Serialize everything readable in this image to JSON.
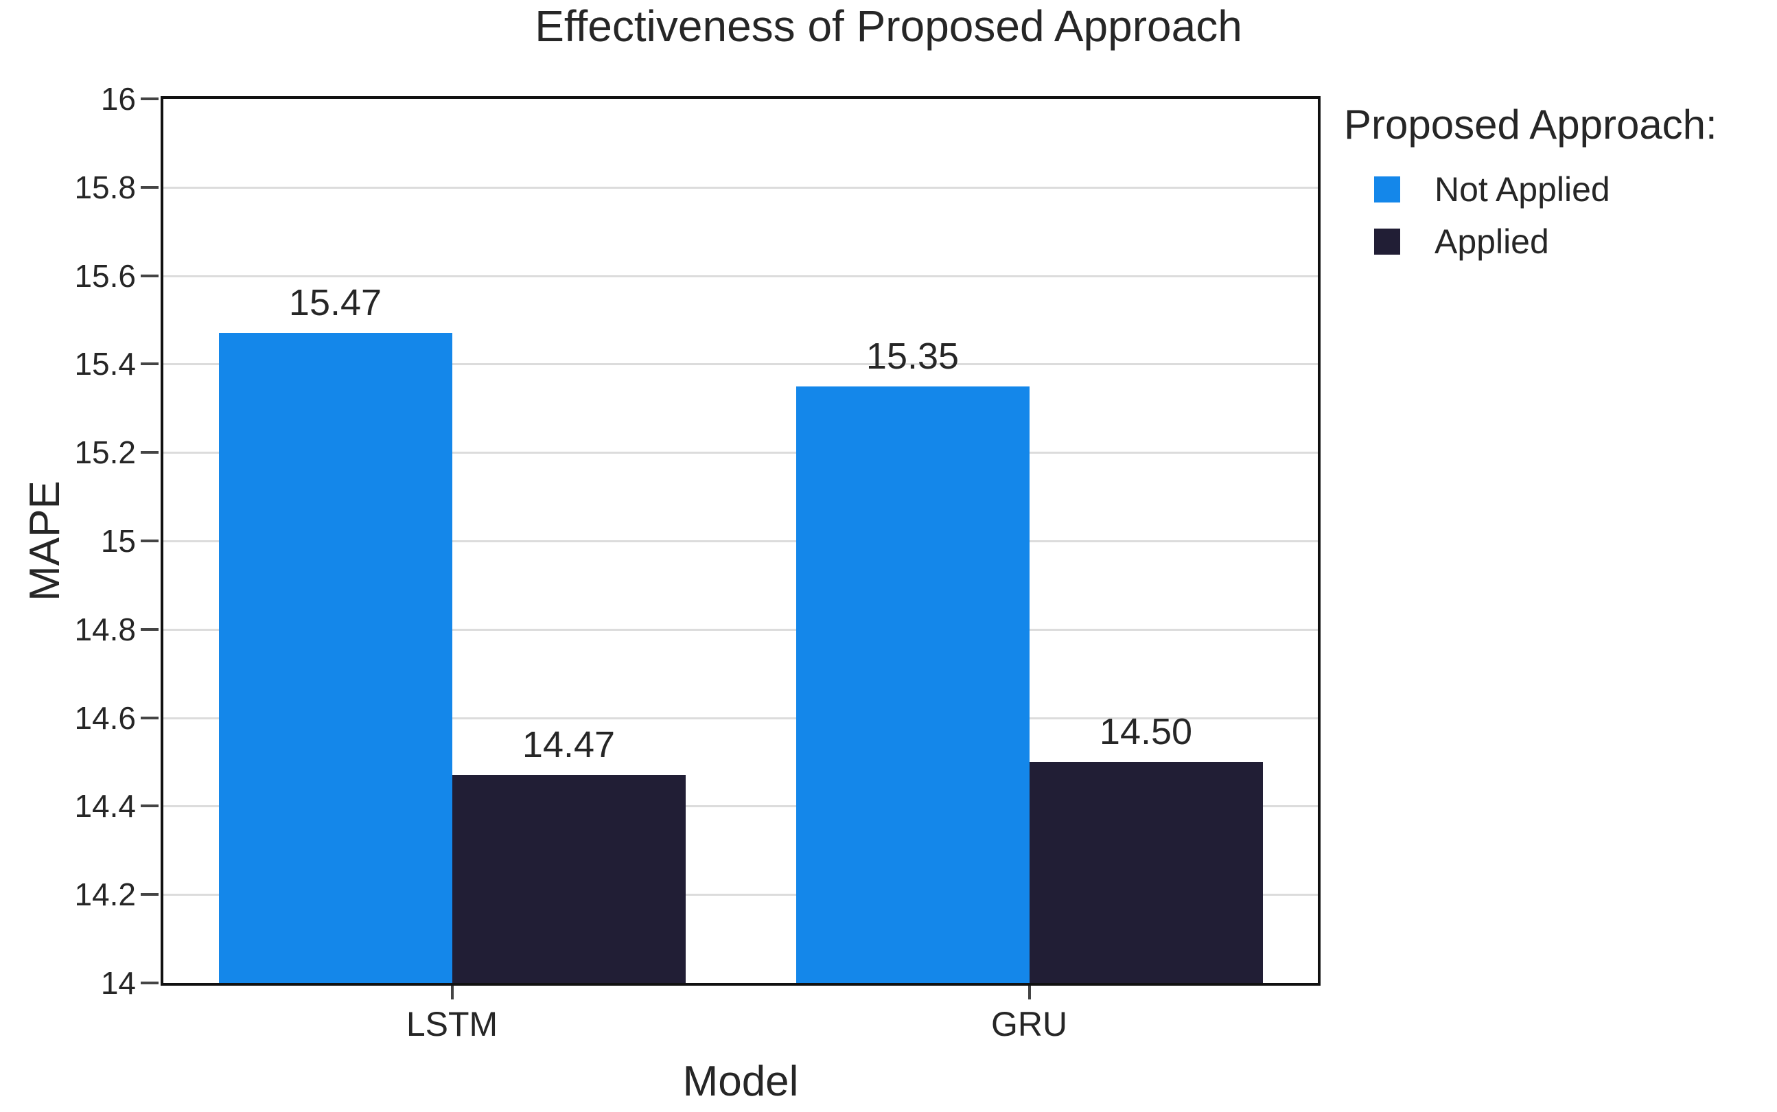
{
  "chart_data": {
    "type": "bar",
    "title": "Effectiveness of Proposed Approach",
    "xlabel": "Model",
    "ylabel": "MAPE",
    "categories": [
      "LSTM",
      "GRU"
    ],
    "series": [
      {
        "name": "Not Applied",
        "color": "#1487ea",
        "values": [
          15.47,
          15.35
        ],
        "labels": [
          "15.47",
          "15.35"
        ]
      },
      {
        "name": "Applied",
        "color": "#211e35",
        "values": [
          14.47,
          14.5
        ],
        "labels": [
          "14.47",
          "14.50"
        ]
      }
    ],
    "ylim": [
      14,
      16
    ],
    "yticks": [
      {
        "value": 14,
        "label": "14"
      },
      {
        "value": 14.2,
        "label": "14.2"
      },
      {
        "value": 14.4,
        "label": "14.4"
      },
      {
        "value": 14.6,
        "label": "14.6"
      },
      {
        "value": 14.8,
        "label": "14.8"
      },
      {
        "value": 15,
        "label": "15"
      },
      {
        "value": 15.2,
        "label": "15.2"
      },
      {
        "value": 15.4,
        "label": "15.4"
      },
      {
        "value": 15.6,
        "label": "15.6"
      },
      {
        "value": 15.8,
        "label": "15.8"
      },
      {
        "value": 16,
        "label": "16"
      }
    ],
    "grid": "horizontal",
    "legend": {
      "title": "Proposed Approach:",
      "position": "top-right-outside"
    }
  },
  "colors": {
    "grid": "#dcdcdc",
    "axis": "#111111",
    "tick": "#444444",
    "text": "#262626"
  }
}
